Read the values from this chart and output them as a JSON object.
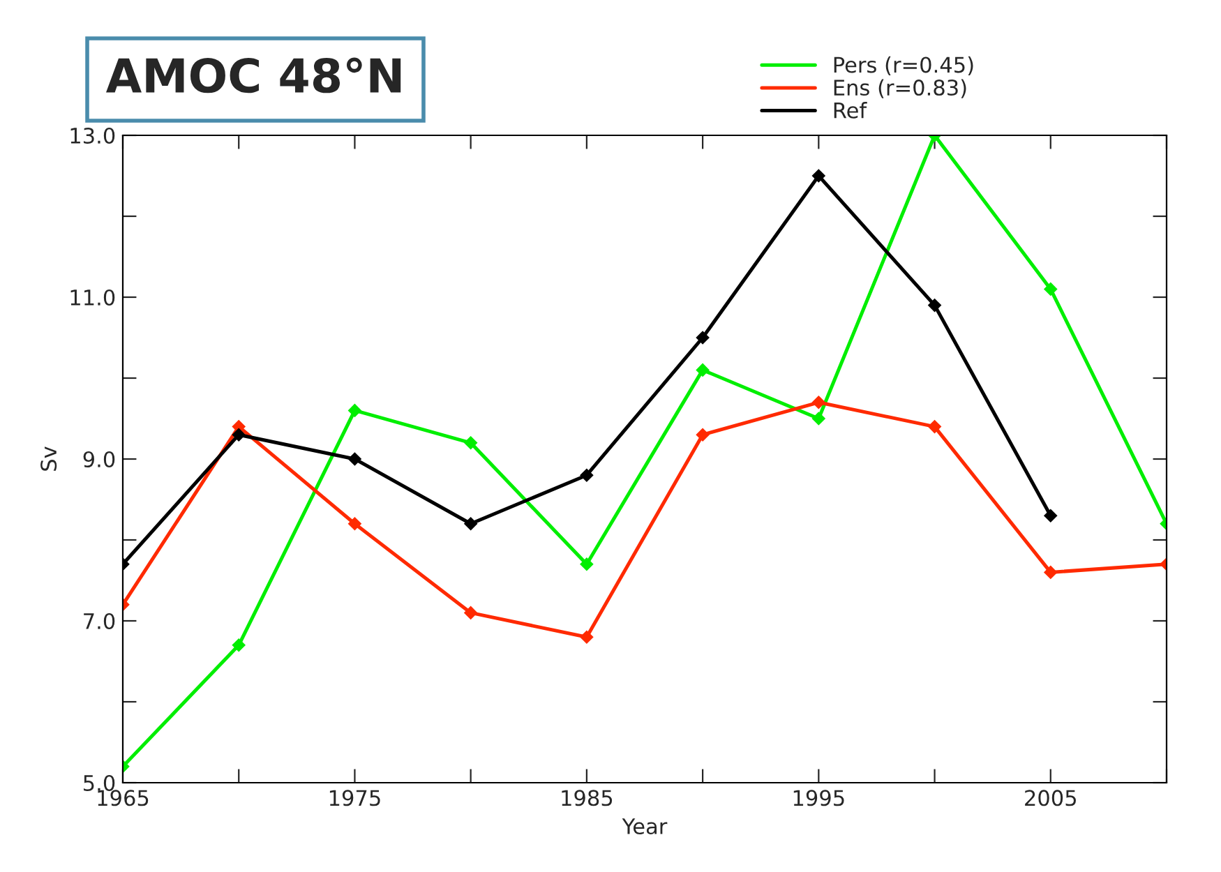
{
  "chart_data": {
    "type": "line",
    "title": "AMOC 48°N",
    "xlabel": "Year",
    "ylabel": "Sv",
    "x": [
      1965,
      1970,
      1975,
      1980,
      1985,
      1990,
      1995,
      2000,
      2005,
      2010
    ],
    "series": [
      {
        "name": "Pers (r=0.45)",
        "color": "#00ee00",
        "values": [
          5.2,
          6.7,
          9.6,
          9.2,
          7.7,
          10.1,
          9.5,
          13.0,
          11.1,
          8.2
        ]
      },
      {
        "name": "Ens (r=0.83)",
        "color": "#ff2a00",
        "values": [
          7.2,
          9.4,
          8.2,
          7.1,
          6.8,
          9.3,
          9.7,
          9.4,
          7.6,
          7.7
        ]
      },
      {
        "name": "Ref",
        "color": "#000000",
        "values": [
          7.7,
          9.3,
          9.0,
          8.2,
          8.8,
          10.5,
          12.5,
          10.9,
          8.3,
          null
        ]
      }
    ],
    "xlim": [
      1965,
      2010
    ],
    "xticks": [
      1965,
      {
        "value": 1970,
        "label": null
      },
      1975,
      {
        "value": 1980,
        "label": null
      },
      1985,
      {
        "value": 1990,
        "label": null
      },
      1995,
      {
        "value": 2000,
        "label": null
      },
      2005,
      {
        "value": 2010,
        "label": null
      }
    ],
    "ylim": [
      5.0,
      13.0
    ],
    "yticks": [
      {
        "value": 5.0,
        "label": "5.0"
      },
      {
        "value": 6.0,
        "label": null
      },
      {
        "value": 7.0,
        "label": "7.0"
      },
      {
        "value": 8.0,
        "label": null
      },
      {
        "value": 9.0,
        "label": "9.0"
      },
      {
        "value": 10.0,
        "label": null
      },
      {
        "value": 11.0,
        "label": "11.0"
      },
      {
        "value": 12.0,
        "label": null
      },
      {
        "value": 13.0,
        "label": "13.0"
      }
    ],
    "marker": "diamond",
    "line_style": "solid",
    "grid": false,
    "legend": "top right"
  }
}
